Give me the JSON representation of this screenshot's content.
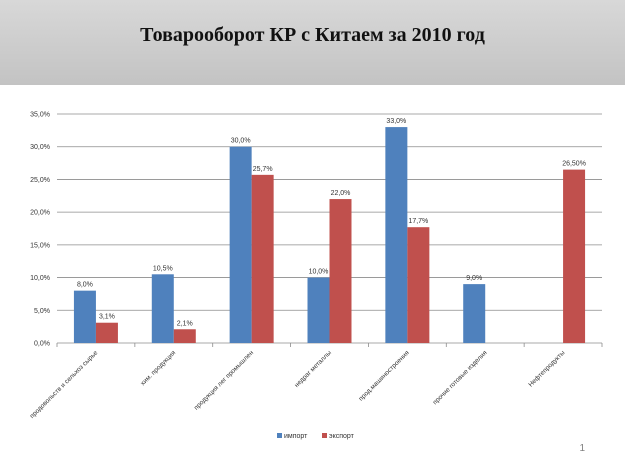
{
  "slide": {
    "title": "Товарооборот КР с Китаем за 2010 год",
    "page_number": "1"
  },
  "chart_data": {
    "type": "bar",
    "categories": [
      "продовольств и сельхоз сырье",
      "хим. продукция",
      "продукция лег промышлен",
      "недраг металлы",
      "прод.машиностроения",
      "прочие готовые изделия",
      "Нефтепродукты"
    ],
    "series": [
      {
        "name": "импорт",
        "color": "#4f81bd",
        "values": [
          8.0,
          10.5,
          30.0,
          10.0,
          33.0,
          9.0,
          null
        ],
        "labels": [
          "8,0%",
          "10,5%",
          "30,0%",
          "10,0%",
          "33,0%",
          "9,0%",
          ""
        ]
      },
      {
        "name": "экспорт",
        "color": "#c0504d",
        "values": [
          3.1,
          2.1,
          25.7,
          22.0,
          17.7,
          null,
          26.5
        ],
        "labels": [
          "3,1%",
          "2,1%",
          "25,7%",
          "22,0%",
          "17,7%",
          "",
          "26,50%"
        ]
      }
    ],
    "y_ticks": [
      "0,0%",
      "5,0%",
      "10,0%",
      "15,0%",
      "20,0%",
      "25,0%",
      "30,0%",
      "35,0%"
    ],
    "ylim": [
      0,
      35
    ],
    "grid": true,
    "legend_position": "bottom",
    "title": "",
    "xlabel": "",
    "ylabel": ""
  }
}
